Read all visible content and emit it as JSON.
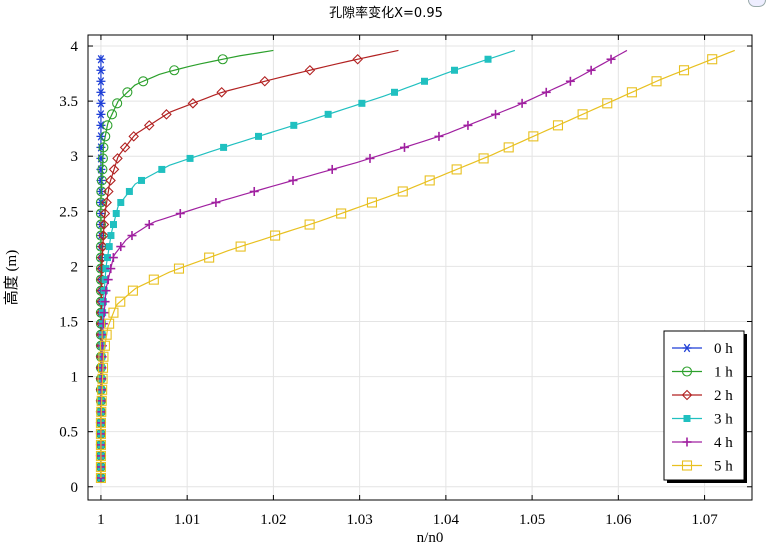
{
  "chart_data": {
    "type": "line",
    "title": "孔隙率变化X=0.95",
    "xlabel": "n/n0",
    "ylabel": "高度 (m)",
    "xlim": [
      0.9985,
      1.0755
    ],
    "ylim": [
      -0.12,
      4.1
    ],
    "xticks": [
      1,
      1.01,
      1.02,
      1.03,
      1.04,
      1.05,
      1.06,
      1.07
    ],
    "xtick_labels": [
      "1",
      "1.01",
      "1.02",
      "1.03",
      "1.04",
      "1.05",
      "1.06",
      "1.07"
    ],
    "yticks": [
      0,
      0.5,
      1,
      1.5,
      2,
      2.5,
      3,
      3.5,
      4
    ],
    "ytick_labels": [
      "0",
      "0.5",
      "1",
      "1.5",
      "2",
      "2.5",
      "3",
      "3.5",
      "4"
    ],
    "grid": true,
    "legend_position": "lower-right",
    "series": [
      {
        "name": "0 h",
        "color": "#1f3fd6",
        "marker": "asterisk",
        "x": [
          1.0,
          1.0,
          1.0,
          1.0
        ],
        "y": [
          0.08,
          1.5,
          3.0,
          3.92
        ]
      },
      {
        "name": "1 h",
        "color": "#2ca02c",
        "marker": "circle",
        "x": [
          1.0,
          1.0,
          1.0,
          1.0003,
          1.0008,
          1.002,
          1.004,
          1.007,
          1.011,
          1.016,
          1.02
        ],
        "y": [
          0.08,
          1.5,
          2.6,
          3.1,
          3.3,
          3.5,
          3.65,
          3.75,
          3.83,
          3.91,
          3.96
        ]
      },
      {
        "name": "2 h",
        "color": "#b22222",
        "marker": "diamond",
        "x": [
          1.0,
          1.0,
          1.0001,
          1.0004,
          1.001,
          1.002,
          1.004,
          1.008,
          1.014,
          1.021,
          1.028,
          1.0345
        ],
        "y": [
          0.08,
          1.0,
          2.0,
          2.45,
          2.75,
          3.0,
          3.2,
          3.4,
          3.58,
          3.72,
          3.85,
          3.96
        ]
      },
      {
        "name": "3 h",
        "color": "#20c0c0",
        "marker": "square-filled",
        "x": [
          1.0,
          1.0,
          1.0002,
          1.0006,
          1.0012,
          1.002,
          1.004,
          1.008,
          1.015,
          1.024,
          1.033,
          1.041,
          1.048
        ],
        "y": [
          0.08,
          0.8,
          1.6,
          2.0,
          2.3,
          2.55,
          2.75,
          2.92,
          3.1,
          3.32,
          3.55,
          3.78,
          3.96
        ]
      },
      {
        "name": "4 h",
        "color": "#a020a0",
        "marker": "plus",
        "x": [
          1.0,
          1.0,
          1.0002,
          1.0006,
          1.0015,
          1.003,
          1.006,
          1.012,
          1.02,
          1.03,
          1.04,
          1.048,
          1.055,
          1.061
        ],
        "y": [
          0.08,
          0.7,
          1.4,
          1.8,
          2.1,
          2.25,
          2.4,
          2.55,
          2.73,
          2.95,
          3.2,
          3.45,
          3.7,
          3.96
        ]
      },
      {
        "name": "5 h",
        "color": "#e8c020",
        "marker": "square-open",
        "x": [
          1.0,
          1.0,
          1.0003,
          1.0008,
          1.0018,
          1.004,
          1.008,
          1.015,
          1.025,
          1.035,
          1.045,
          1.055,
          1.065,
          1.0735
        ],
        "y": [
          0.08,
          0.6,
          1.2,
          1.45,
          1.65,
          1.8,
          1.95,
          2.15,
          2.4,
          2.68,
          3.0,
          3.35,
          3.7,
          3.96
        ]
      }
    ]
  }
}
